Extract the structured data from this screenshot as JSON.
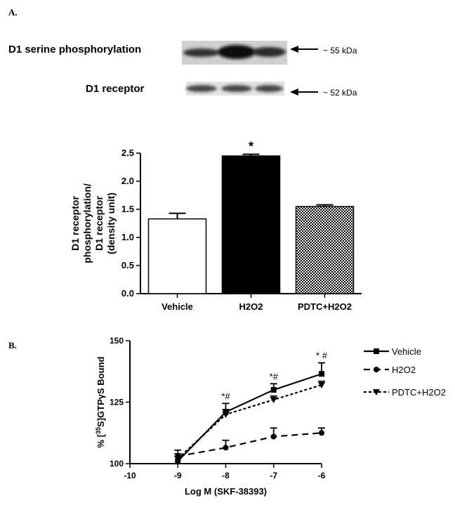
{
  "panel_a": {
    "letter": "A.",
    "blot": {
      "rows": [
        {
          "label": "D1 serine phosphorylation",
          "size": "~ 55 kDa"
        },
        {
          "label": "D1 receptor",
          "size": "~ 52 kDa"
        }
      ]
    }
  },
  "panel_b": {
    "letter": "B."
  },
  "chart_data": [
    {
      "type": "bar",
      "title": "",
      "ylabel": "D1 receptor phosphorylation/ D1 receptor (density unit)",
      "ylabel_lines": [
        "D1 receptor",
        "phosphorylation/",
        "D1 receptor",
        "(density unit)"
      ],
      "xlabel": "",
      "ylim": [
        0,
        2.5
      ],
      "yticks": [
        "0.0",
        "0.5",
        "1.0",
        "1.5",
        "2.0",
        "2.5"
      ],
      "categories": [
        "Vehicle",
        "H2O2",
        "PDTC+H2O2"
      ],
      "values": [
        1.33,
        2.45,
        1.55
      ],
      "errors": [
        0.1,
        0.03,
        0.03
      ],
      "fills": [
        "#ffffff",
        "#000000",
        "checker"
      ],
      "annotations": [
        {
          "category": "H2O2",
          "text": "*"
        }
      ]
    },
    {
      "type": "line",
      "title": "",
      "xlabel": "Log M (SKF-38393)",
      "ylabel": "% [35S]GTPγS Bound",
      "ylabel_parts": {
        "pre": "% [",
        "sup": "35",
        "post": "S]GTPγS Bound"
      },
      "xlim": [
        -10,
        -6
      ],
      "ylim": [
        100,
        150
      ],
      "xticks": [
        "-10",
        "-9",
        "-8",
        "-7",
        "-6"
      ],
      "yticks": [
        "100",
        "125",
        "150"
      ],
      "x": [
        -9,
        -8,
        -7,
        -6
      ],
      "series": [
        {
          "name": "Vehicle",
          "marker": "square",
          "dash": "solid",
          "values": [
            101,
            121,
            130,
            136.5
          ],
          "errors": [
            2,
            3.5,
            2.5,
            4.5
          ]
        },
        {
          "name": "H2O2",
          "marker": "circle",
          "dash": "dashed",
          "values": [
            103,
            106.5,
            111,
            112.5
          ],
          "errors": [
            2.5,
            3,
            3.5,
            2
          ]
        },
        {
          "name": "PDTC+H2O2",
          "marker": "triangle-down",
          "dash": "dotted",
          "values": [
            102,
            120,
            126,
            132
          ],
          "errors": [
            2,
            2,
            1.5,
            1.5
          ]
        }
      ],
      "annotations": [
        {
          "x": -8,
          "text": "*#"
        },
        {
          "x": -7,
          "text": "*#"
        },
        {
          "x": -6,
          "text": "* #"
        }
      ],
      "legend_position": "right"
    }
  ]
}
